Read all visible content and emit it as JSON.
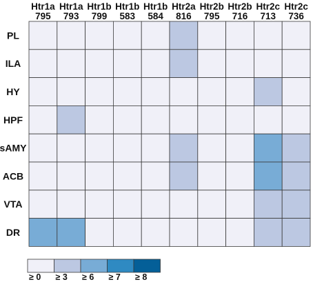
{
  "chart_data": {
    "type": "heatmap",
    "columns": [
      {
        "gene": "Htr1a",
        "id": "795"
      },
      {
        "gene": "Htr1a",
        "id": "793"
      },
      {
        "gene": "Htr1b",
        "id": "799"
      },
      {
        "gene": "Htr1b",
        "id": "583"
      },
      {
        "gene": "Htr1b",
        "id": "584"
      },
      {
        "gene": "Htr2a",
        "id": "816"
      },
      {
        "gene": "Htr2b",
        "id": "795"
      },
      {
        "gene": "Htr2b",
        "id": "716"
      },
      {
        "gene": "Htr2c",
        "id": "713"
      },
      {
        "gene": "Htr2c",
        "id": "736"
      }
    ],
    "rows": [
      "PL",
      "ILA",
      "HY",
      "HPF",
      "sAMY",
      "ACB",
      "VTA",
      "DR"
    ],
    "levels": [
      [
        0,
        0,
        0,
        0,
        0,
        1,
        0,
        0,
        0,
        0
      ],
      [
        0,
        0,
        0,
        0,
        0,
        1,
        0,
        0,
        0,
        0
      ],
      [
        0,
        0,
        0,
        0,
        0,
        0,
        0,
        0,
        1,
        0
      ],
      [
        0,
        1,
        0,
        0,
        0,
        0,
        0,
        0,
        0,
        0
      ],
      [
        0,
        0,
        0,
        0,
        0,
        1,
        0,
        0,
        2,
        1
      ],
      [
        0,
        0,
        0,
        0,
        0,
        1,
        0,
        0,
        2,
        1
      ],
      [
        0,
        0,
        0,
        0,
        0,
        0,
        0,
        0,
        1,
        1
      ],
      [
        2,
        2,
        0,
        0,
        0,
        0,
        0,
        0,
        1,
        1
      ]
    ],
    "legend": [
      {
        "label": "≥ 0",
        "color": "#f0f0f8"
      },
      {
        "label": "≥ 3",
        "color": "#bcc8e2"
      },
      {
        "label": "≥ 6",
        "color": "#78acd6"
      },
      {
        "label": "≥ 7",
        "color": "#2f8ac2"
      },
      {
        "label": "≥ 8",
        "color": "#045f98"
      }
    ]
  }
}
